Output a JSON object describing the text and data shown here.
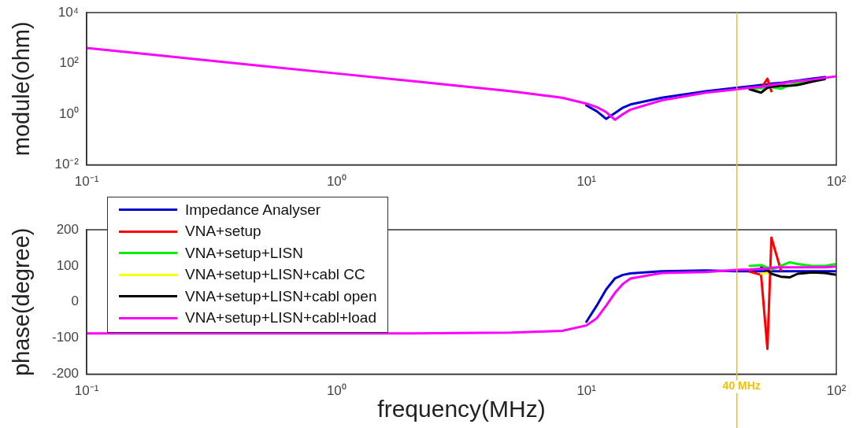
{
  "chart_data": [
    {
      "type": "line",
      "ylabel": "module(ohm)",
      "log": "xy",
      "x": [
        0.1,
        0.2,
        0.5,
        1,
        2,
        5,
        8,
        10,
        11,
        12,
        13,
        14,
        15,
        20,
        30,
        40,
        45,
        50,
        53,
        55,
        60,
        65,
        70,
        80,
        90,
        100
      ],
      "xlim": [
        0.1,
        100
      ],
      "xticks": [
        {
          "value": 0.1,
          "label": "10⁻¹"
        },
        {
          "value": 1,
          "label": "10⁰"
        },
        {
          "value": 10,
          "label": "10¹"
        },
        {
          "value": 100,
          "label": "10²"
        }
      ],
      "ylim": [
        0.01,
        10000
      ],
      "yticks": [
        {
          "value": 0.01,
          "label": "10⁻²"
        },
        {
          "value": 1,
          "label": "10⁰"
        },
        {
          "value": 100,
          "label": "10²"
        },
        {
          "value": 10000,
          "label": "10⁴"
        }
      ],
      "legend": false,
      "ref_lines": [
        {
          "axis": "x",
          "value": 40,
          "color": "#f2c200"
        }
      ],
      "series": [
        {
          "color": "#0000d0",
          "values": [
            null,
            null,
            null,
            null,
            null,
            null,
            null,
            2.2,
            1.3,
            0.65,
            1.1,
            1.8,
            2.4,
            4.4,
            8,
            11,
            12.5,
            14,
            15,
            16,
            17,
            19,
            21,
            25,
            29,
            null
          ]
        },
        {
          "color": "#ff0000",
          "values": [
            null,
            null,
            null,
            null,
            null,
            null,
            null,
            null,
            null,
            null,
            null,
            null,
            null,
            null,
            null,
            null,
            null,
            10.5,
            25,
            8,
            null,
            null,
            null,
            null,
            null,
            null
          ]
        },
        {
          "color": "#00ee00",
          "values": [
            null,
            null,
            null,
            null,
            null,
            null,
            null,
            null,
            null,
            null,
            null,
            null,
            null,
            null,
            null,
            null,
            10,
            10.5,
            11,
            11.5,
            10,
            14,
            17,
            20,
            null,
            null
          ]
        },
        {
          "color": "#000000",
          "values": [
            null,
            null,
            null,
            null,
            null,
            null,
            null,
            null,
            null,
            null,
            null,
            null,
            null,
            null,
            null,
            null,
            9.5,
            7,
            11,
            12,
            13,
            13,
            14,
            19,
            24,
            null
          ]
        },
        {
          "color": "#ff00ff",
          "values": [
            400,
            200,
            80,
            40,
            20,
            8,
            4.4,
            2.6,
            1.9,
            1.2,
            0.6,
            1,
            1.5,
            3.5,
            7,
            9.5,
            11,
            12,
            13,
            14,
            16,
            18,
            20,
            23,
            27,
            31
          ]
        }
      ]
    },
    {
      "type": "line",
      "ylabel": "phase(degree)",
      "xlabel": "frequency(MHz)",
      "log": "x",
      "x": [
        0.1,
        0.2,
        0.5,
        1,
        2,
        5,
        8,
        10,
        11,
        12,
        13,
        14,
        15,
        20,
        30,
        40,
        45,
        50,
        53,
        55,
        60,
        65,
        70,
        80,
        90,
        100
      ],
      "xlim": [
        0.1,
        100
      ],
      "xticks": [
        {
          "value": 0.1,
          "label": "10⁻¹"
        },
        {
          "value": 1,
          "label": "10⁰"
        },
        {
          "value": 10,
          "label": "10¹"
        },
        {
          "value": 100,
          "label": "10²"
        }
      ],
      "ylim": [
        -200,
        200
      ],
      "yticks": [
        -200,
        -100,
        0,
        100,
        200
      ],
      "legend": "top left",
      "ref_lines": [
        {
          "axis": "x",
          "value": 40,
          "label": "40 MHz",
          "color": "#f2c200"
        }
      ],
      "series": [
        {
          "name": "Impedance Analyser",
          "color": "#0000d0",
          "values": [
            null,
            null,
            null,
            null,
            null,
            null,
            null,
            -55,
            -10,
            35,
            65,
            75,
            79,
            85,
            87,
            85,
            85,
            85,
            85,
            85,
            85,
            85,
            85,
            85,
            85,
            85
          ]
        },
        {
          "name": "VNA+setup",
          "color": "#ff0000",
          "values": [
            null,
            null,
            null,
            null,
            null,
            null,
            null,
            null,
            null,
            null,
            null,
            null,
            null,
            null,
            null,
            null,
            84,
            75,
            -130,
            178,
            88,
            null,
            null,
            null,
            null,
            null
          ]
        },
        {
          "name": "VNA+setup+LISN",
          "color": "#00ee00",
          "values": [
            null,
            null,
            null,
            null,
            null,
            null,
            null,
            null,
            null,
            null,
            null,
            null,
            null,
            null,
            null,
            null,
            100,
            102,
            95,
            90,
            100,
            110,
            105,
            100,
            100,
            105
          ]
        },
        {
          "name": "VNA+setup+LISN+cabl CC",
          "color": "#ffff00",
          "values": [
            null,
            null,
            null,
            null,
            null,
            null,
            null,
            null,
            null,
            null,
            null,
            null,
            null,
            null,
            null,
            null,
            null,
            78,
            80,
            null,
            null,
            null,
            null,
            null,
            null,
            null
          ]
        },
        {
          "name": "VNA+setup+LISN+cabl open",
          "color": "#000000",
          "values": [
            null,
            null,
            null,
            null,
            null,
            null,
            null,
            null,
            null,
            null,
            null,
            null,
            null,
            null,
            null,
            null,
            null,
            95,
            88,
            78,
            70,
            68,
            78,
            82,
            80,
            75
          ]
        },
        {
          "name": "VNA+setup+LISN+cabl+load",
          "color": "#ff00ff",
          "values": [
            -87,
            -87,
            -87,
            -87,
            -87,
            -85,
            -80,
            -65,
            -45,
            -10,
            25,
            50,
            65,
            80,
            83,
            89,
            90,
            92,
            92,
            95,
            96,
            96,
            96,
            96,
            96,
            98
          ]
        }
      ]
    }
  ]
}
